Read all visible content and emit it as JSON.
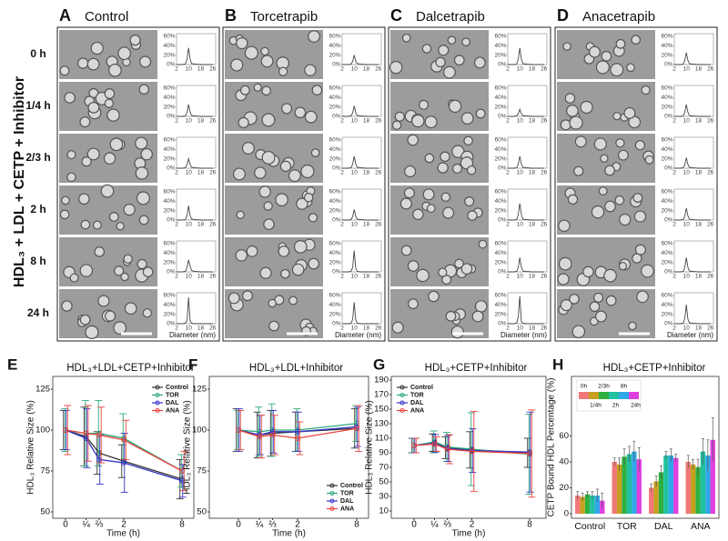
{
  "side_label": "HDL₃ + LDL + CETP + Inhibitor",
  "row_labels": [
    "0 h",
    "1/4 h",
    "2/3 h",
    "2 h",
    "8 h",
    "24 h"
  ],
  "histogram_axes": {
    "xlabel": "Diameter (nm)",
    "x": [
      2,
      6,
      8,
      9,
      10,
      11,
      12,
      14,
      18,
      26
    ],
    "xlim": [
      2,
      28
    ],
    "xticks": [
      2,
      10,
      18,
      26
    ],
    "ylim": [
      0,
      65
    ],
    "yticks": [
      {
        "value": 60,
        "label": "60%"
      },
      {
        "value": 40,
        "label": "40%"
      },
      {
        "value": 20,
        "label": "20%"
      },
      {
        "value": 0,
        "label": "0%"
      }
    ]
  },
  "panels": [
    {
      "letter": "A",
      "title": "Control",
      "distributions": [
        [
          0,
          0,
          1,
          12,
          35,
          12,
          2,
          1,
          0,
          0
        ],
        [
          0,
          0,
          1,
          9,
          25,
          9,
          2,
          1,
          0,
          0
        ],
        [
          0,
          0,
          1,
          8,
          20,
          8,
          2,
          1,
          0,
          0
        ],
        [
          0,
          0,
          1,
          10,
          30,
          10,
          2,
          1,
          0,
          0
        ],
        [
          0,
          0,
          1,
          10,
          25,
          12,
          3,
          1,
          0,
          0
        ],
        [
          0,
          0,
          1,
          8,
          55,
          6,
          1,
          0,
          0,
          0
        ]
      ]
    },
    {
      "letter": "B",
      "title": "Torcetrapib",
      "distributions": [
        [
          0,
          0,
          1,
          7,
          20,
          7,
          2,
          1,
          0,
          0
        ],
        [
          0,
          0,
          1,
          8,
          22,
          8,
          2,
          1,
          0,
          0
        ],
        [
          0,
          0,
          1,
          9,
          25,
          9,
          2,
          1,
          0,
          0
        ],
        [
          0,
          0,
          1,
          8,
          22,
          8,
          2,
          1,
          0,
          0
        ],
        [
          0,
          0,
          1,
          10,
          45,
          8,
          1,
          0,
          0,
          0
        ],
        [
          0,
          0,
          1,
          10,
          45,
          8,
          1,
          0,
          0,
          0
        ]
      ]
    },
    {
      "letter": "C",
      "title": "Dalcetrapib",
      "distributions": [
        [
          0,
          0,
          1,
          12,
          35,
          12,
          2,
          1,
          0,
          0
        ],
        [
          0,
          0,
          1,
          6,
          15,
          6,
          2,
          1,
          0,
          0
        ],
        [
          0,
          0,
          1,
          9,
          25,
          9,
          2,
          1,
          0,
          0
        ],
        [
          0,
          0,
          1,
          12,
          35,
          12,
          2,
          1,
          0,
          0
        ],
        [
          0,
          0,
          1,
          10,
          30,
          10,
          2,
          1,
          0,
          0
        ],
        [
          0,
          0,
          2,
          15,
          58,
          5,
          1,
          0,
          0,
          0
        ]
      ]
    },
    {
      "letter": "D",
      "title": "Anacetrapib",
      "distributions": [
        [
          0,
          0,
          1,
          9,
          25,
          9,
          2,
          1,
          0,
          0
        ],
        [
          0,
          0,
          1,
          9,
          25,
          9,
          2,
          1,
          0,
          0
        ],
        [
          0,
          0,
          1,
          8,
          22,
          8,
          2,
          1,
          0,
          0
        ],
        [
          0,
          0,
          1,
          9,
          25,
          9,
          2,
          1,
          0,
          0
        ],
        [
          0,
          0,
          1,
          10,
          30,
          10,
          2,
          1,
          0,
          0
        ],
        [
          0,
          0,
          1,
          12,
          40,
          10,
          2,
          1,
          0,
          0
        ]
      ]
    }
  ],
  "chart_data": [
    {
      "letter": "E",
      "type": "line",
      "title": "HDL₃+LDL+CETP+Inhibitor",
      "ylabel": "HDL₃ Relative Size (%)",
      "xlabel": "Time (h)",
      "x": [
        0,
        0.25,
        0.6667,
        2,
        8
      ],
      "xscale": "sqrt",
      "xlim": [
        0,
        8
      ],
      "xticks": [
        0,
        {
          "value": 0.25,
          "label": "¼"
        },
        {
          "value": 0.6667,
          "label": "⅔"
        },
        2,
        8
      ],
      "ylim": [
        50,
        125
      ],
      "yticks": [
        50,
        75,
        100,
        125
      ],
      "legend": "upper right",
      "series": [
        {
          "name": "Control",
          "color": "#333333",
          "values": [
            100,
            96,
            86,
            81,
            70
          ],
          "errors": [
            12,
            18,
            13,
            10,
            12
          ]
        },
        {
          "name": "TOR",
          "color": "#2ca87a",
          "values": [
            100,
            98,
            98,
            95,
            75
          ],
          "errors": [
            13,
            20,
            20,
            15,
            10
          ]
        },
        {
          "name": "DAL",
          "color": "#3434c8",
          "values": [
            100,
            95,
            82,
            80,
            69
          ],
          "errors": [
            12,
            18,
            15,
            18,
            10
          ]
        },
        {
          "name": "ANA",
          "color": "#e8433d",
          "values": [
            100,
            98,
            97,
            94,
            75
          ],
          "errors": [
            15,
            17,
            17,
            12,
            12
          ]
        }
      ]
    },
    {
      "letter": "F",
      "type": "line",
      "title": "HDL₃+LDL+Inhibitor",
      "ylabel": "HDL₃ Relative Size (%)",
      "xlabel": "Time (h)",
      "x": [
        0,
        0.25,
        0.6667,
        2,
        8
      ],
      "xscale": "sqrt",
      "xlim": [
        0,
        8
      ],
      "xticks": [
        0,
        {
          "value": 0.25,
          "label": "¼"
        },
        {
          "value": 0.6667,
          "label": "⅔"
        },
        2,
        8
      ],
      "ylim": [
        50,
        125
      ],
      "yticks": [
        50,
        75,
        100,
        125
      ],
      "legend": "lower right",
      "series": [
        {
          "name": "Control",
          "color": "#333333",
          "values": [
            100,
            97,
            98,
            99,
            101
          ],
          "errors": [
            13,
            14,
            14,
            12,
            12
          ]
        },
        {
          "name": "TOR",
          "color": "#2ca87a",
          "values": [
            100,
            99,
            100,
            100,
            104
          ],
          "errors": [
            12,
            15,
            16,
            13,
            11
          ]
        },
        {
          "name": "DAL",
          "color": "#3434c8",
          "values": [
            100,
            97,
            99,
            99,
            102
          ],
          "errors": [
            13,
            12,
            13,
            12,
            12
          ]
        },
        {
          "name": "ANA",
          "color": "#e8433d",
          "values": [
            100,
            96,
            97,
            95,
            101
          ],
          "errors": [
            12,
            13,
            12,
            10,
            14
          ]
        }
      ]
    },
    {
      "letter": "G",
      "type": "line",
      "title": "HDL₃+CETP+Inhibitor",
      "ylabel": "HDL₃ Relative Size (%)",
      "xlabel": "Time (h)",
      "x": [
        0,
        0.25,
        0.6667,
        2,
        8
      ],
      "xscale": "sqrt",
      "xlim": [
        0,
        8
      ],
      "xticks": [
        0,
        {
          "value": 0.25,
          "label": "¼"
        },
        {
          "value": 0.6667,
          "label": "⅔"
        },
        2,
        8
      ],
      "ylim": [
        10,
        190
      ],
      "yticks": [
        10,
        30,
        50,
        70,
        90,
        110,
        130,
        150,
        170,
        190
      ],
      "legend": "upper left",
      "series": [
        {
          "name": "Control",
          "color": "#333333",
          "values": [
            100,
            104,
            97,
            94,
            90
          ],
          "errors": [
            10,
            12,
            15,
            25,
            20
          ]
        },
        {
          "name": "TOR",
          "color": "#2ca87a",
          "values": [
            100,
            105,
            98,
            95,
            88
          ],
          "errors": [
            10,
            15,
            20,
            50,
            55
          ]
        },
        {
          "name": "DAL",
          "color": "#3434c8",
          "values": [
            100,
            103,
            96,
            93,
            91
          ],
          "errors": [
            10,
            12,
            18,
            30,
            55
          ]
        },
        {
          "name": "ANA",
          "color": "#e8433d",
          "values": [
            100,
            102,
            95,
            92,
            89
          ],
          "errors": [
            10,
            10,
            20,
            55,
            60
          ]
        }
      ]
    },
    {
      "letter": "H",
      "type": "bar",
      "title": "HDL₃+CETP+Inhibitor",
      "ylabel": "CETP Bound HDL Percentage (%)",
      "categories": [
        "Control",
        "TOR",
        "DAL",
        "ANA"
      ],
      "ylim": [
        0,
        80
      ],
      "yticks": [
        0,
        20,
        40,
        60
      ],
      "legend": "upper left",
      "series": [
        {
          "name": "0h",
          "color": "#f07878",
          "values": [
            14,
            40,
            20,
            40
          ],
          "errors": [
            3,
            3,
            3,
            5
          ]
        },
        {
          "name": "1/4h",
          "color": "#c8a020",
          "values": [
            13,
            38,
            25,
            38
          ],
          "errors": [
            3,
            5,
            4,
            4
          ]
        },
        {
          "name": "2/3h",
          "color": "#2db040",
          "values": [
            15,
            44,
            32,
            36
          ],
          "errors": [
            2,
            6,
            5,
            6
          ]
        },
        {
          "name": "2h",
          "color": "#20c0a0",
          "values": [
            14,
            46,
            45,
            48
          ],
          "errors": [
            3,
            6,
            3,
            10
          ]
        },
        {
          "name": "8h",
          "color": "#30a8e8",
          "values": [
            14,
            48,
            45,
            45
          ],
          "errors": [
            5,
            8,
            5,
            12
          ]
        },
        {
          "name": "24h",
          "color": "#e040e0",
          "values": [
            10,
            42,
            43,
            57
          ],
          "errors": [
            6,
            9,
            3,
            17
          ]
        }
      ]
    }
  ]
}
